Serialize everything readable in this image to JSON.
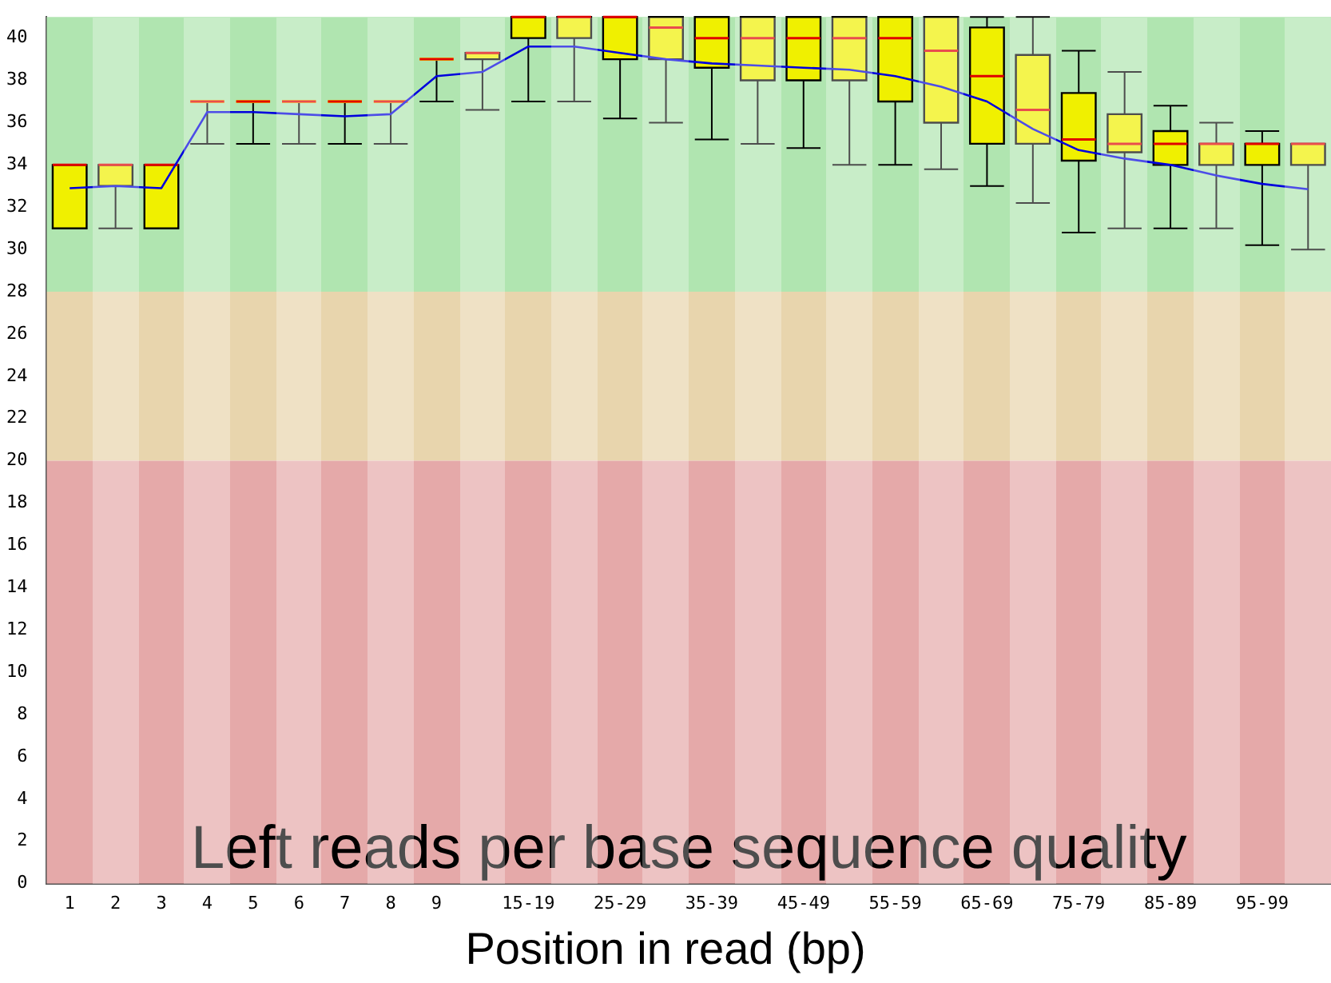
{
  "chart_data": {
    "type": "box",
    "title": "Left reads per base sequence quality",
    "xlabel": "Position in read (bp)",
    "categories": [
      "1",
      "2",
      "3",
      "4",
      "5",
      "6",
      "7",
      "8",
      "9",
      null,
      "15-19",
      null,
      "25-29",
      null,
      "35-39",
      null,
      "45-49",
      null,
      "55-59",
      null,
      "65-69",
      null,
      "75-79",
      null,
      "85-89",
      null,
      "95-99",
      null
    ],
    "series": [
      {
        "type": "box",
        "color": "#f0f000",
        "boxes": [
          {
            "low": 31,
            "q1": 31,
            "median": 34,
            "q3": 34,
            "high": 34
          },
          {
            "low": 31,
            "q1": 33,
            "median": 34,
            "q3": 34,
            "high": 34
          },
          {
            "low": 31,
            "q1": 31,
            "median": 34,
            "q3": 34,
            "high": 34
          },
          {
            "low": 35,
            "q1": 37,
            "median": 37,
            "q3": 37,
            "high": 37
          },
          {
            "low": 35,
            "q1": 37,
            "median": 37,
            "q3": 37,
            "high": 37
          },
          {
            "low": 35,
            "q1": 37,
            "median": 37,
            "q3": 37,
            "high": 37
          },
          {
            "low": 35,
            "q1": 37,
            "median": 37,
            "q3": 37,
            "high": 37
          },
          {
            "low": 35,
            "q1": 37,
            "median": 37,
            "q3": 37,
            "high": 37
          },
          {
            "low": 37,
            "q1": 39,
            "median": 39,
            "q3": 39,
            "high": 39
          },
          {
            "low": 36.6,
            "q1": 39,
            "median": 39.3,
            "q3": 39.3,
            "high": 39.3
          },
          {
            "low": 37,
            "q1": 40,
            "median": 41,
            "q3": 41,
            "high": 41
          },
          {
            "low": 37,
            "q1": 40,
            "median": 41,
            "q3": 41,
            "high": 41
          },
          {
            "low": 36.2,
            "q1": 39,
            "median": 41,
            "q3": 41,
            "high": 41
          },
          {
            "low": 36,
            "q1": 39,
            "median": 40.5,
            "q3": 41,
            "high": 41
          },
          {
            "low": 35.2,
            "q1": 38.6,
            "median": 40,
            "q3": 41,
            "high": 41
          },
          {
            "low": 35,
            "q1": 38,
            "median": 40,
            "q3": 41,
            "high": 41
          },
          {
            "low": 34.8,
            "q1": 38,
            "median": 40,
            "q3": 41,
            "high": 41
          },
          {
            "low": 34,
            "q1": 38,
            "median": 40,
            "q3": 41,
            "high": 41
          },
          {
            "low": 34,
            "q1": 37,
            "median": 40,
            "q3": 41,
            "high": 41
          },
          {
            "low": 33.8,
            "q1": 36,
            "median": 39.4,
            "q3": 41,
            "high": 41
          },
          {
            "low": 33,
            "q1": 35,
            "median": 38.2,
            "q3": 40.5,
            "high": 41
          },
          {
            "low": 32.2,
            "q1": 35,
            "median": 36.6,
            "q3": 39.2,
            "high": 41
          },
          {
            "low": 30.8,
            "q1": 34.2,
            "median": 35.2,
            "q3": 37.4,
            "high": 39.4
          },
          {
            "low": 31,
            "q1": 34.6,
            "median": 35,
            "q3": 36.4,
            "high": 38.4
          },
          {
            "low": 31,
            "q1": 34,
            "median": 35,
            "q3": 35.6,
            "high": 36.8
          },
          {
            "low": 31,
            "q1": 34,
            "median": 35,
            "q3": 35,
            "high": 36
          },
          {
            "low": 30.2,
            "q1": 34,
            "median": 35,
            "q3": 35,
            "high": 35.6
          },
          {
            "low": 30,
            "q1": 34,
            "median": 35,
            "q3": 35,
            "high": 35
          }
        ]
      },
      {
        "type": "line",
        "color": "#0000dd",
        "values": [
          32.9,
          33,
          32.9,
          36.5,
          36.5,
          36.4,
          36.3,
          36.4,
          38.2,
          38.4,
          39.6,
          39.6,
          39.3,
          39,
          38.8,
          38.7,
          38.6,
          38.5,
          38.2,
          37.7,
          37,
          35.7,
          34.7,
          34.3,
          34,
          33.5,
          33.1,
          32.85
        ]
      }
    ],
    "bands": [
      {
        "axis": "y",
        "from": 28,
        "to": 41,
        "color": "#b0e5b0"
      },
      {
        "axis": "y",
        "from": 20,
        "to": 28,
        "color": "#e8d5ad"
      },
      {
        "axis": "y",
        "from": 0,
        "to": 20,
        "color": "#e5a9a9"
      }
    ],
    "ylim": [
      0,
      41
    ],
    "yticks": [
      0,
      2,
      4,
      6,
      8,
      10,
      12,
      14,
      16,
      18,
      20,
      22,
      24,
      26,
      28,
      30,
      32,
      34,
      36,
      38,
      40
    ],
    "grid": false,
    "legend": false
  }
}
